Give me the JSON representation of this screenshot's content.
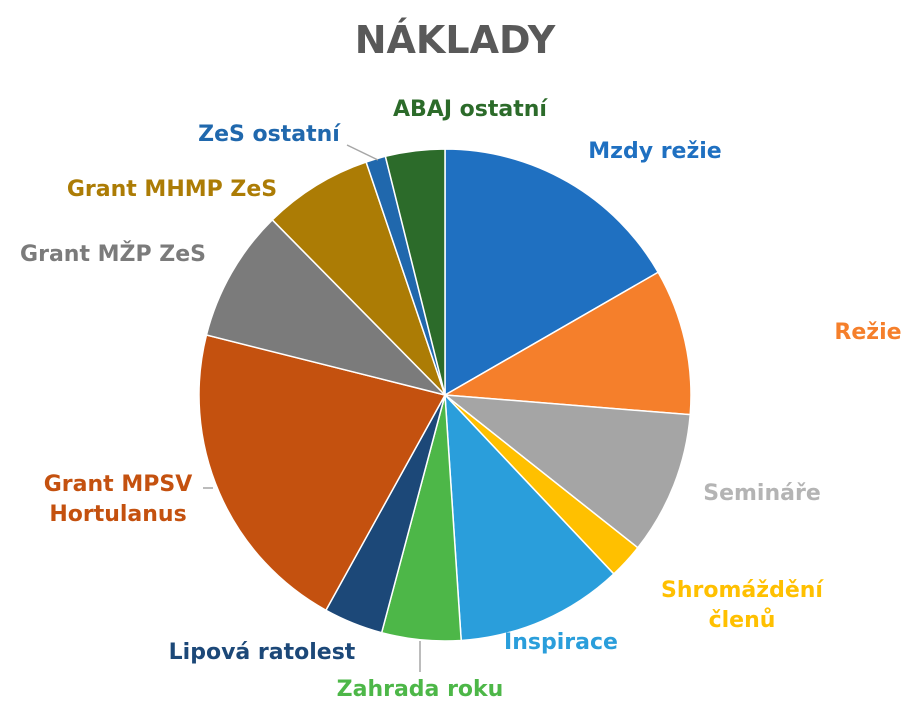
{
  "chart_data": {
    "type": "pie",
    "title": "NÁKLADY",
    "categories": [
      "Mzdy režie",
      "Režie",
      "Semináře",
      "Shromáždění členů",
      "Inspirace",
      "Zahrada roku",
      "Lipová ratolest",
      "Grant MPSV Hortulanus",
      "Grant MŽP ZeS",
      "Grant MHMP ZeS",
      "ZeS ostatní",
      "ABAJ ostatní"
    ],
    "values": [
      16.7,
      9.6,
      9.4,
      2.3,
      11,
      5.2,
      3.9,
      20.9,
      8.7,
      7.2,
      1.3,
      3.9
    ],
    "colors": [
      "#1f70c1",
      "#f57f2b",
      "#a5a5a5",
      "#ffc000",
      "#2a9edb",
      "#4db748",
      "#1c4878",
      "#c4510f",
      "#7b7b7b",
      "#ac7c05",
      "#2068ad",
      "#2c6b2a"
    ]
  }
}
